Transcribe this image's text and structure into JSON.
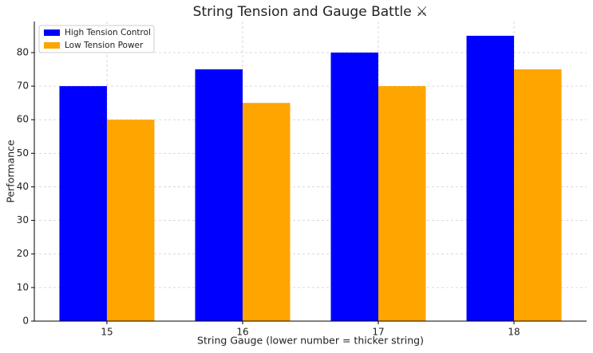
{
  "chart_data": {
    "type": "bar",
    "title": "String Tension and Gauge Battle ⚔",
    "x_label": "String Gauge (lower number = thicker string)",
    "y_label": "Performance",
    "categories": [
      "15",
      "16",
      "17",
      "18"
    ],
    "series": [
      {
        "name": "High Tension Control",
        "color": "#0000ff",
        "values": [
          70,
          75,
          80,
          85
        ]
      },
      {
        "name": "Low Tension Power",
        "color": "#ffa500",
        "values": [
          60,
          65,
          70,
          75
        ]
      }
    ],
    "ylim": [
      0,
      89.25
    ],
    "yticks": [
      0,
      10,
      20,
      30,
      40,
      50,
      60,
      70,
      80
    ],
    "grid": true,
    "legend": "upper-left"
  }
}
